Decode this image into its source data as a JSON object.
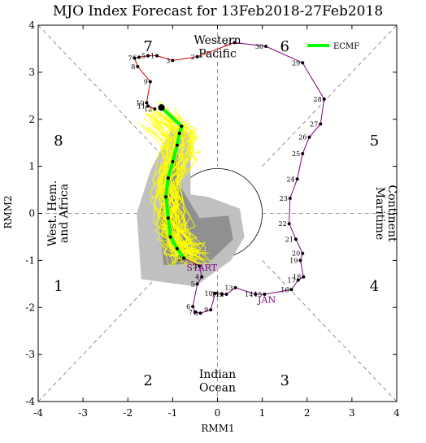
{
  "chart_data": {
    "type": "line",
    "title": "MJO Index Forecast for 13Feb2018-27Feb2018",
    "xlabel": "RMM1",
    "ylabel": "RMM2",
    "xlim": [
      -4,
      4
    ],
    "ylim": [
      -4,
      4
    ],
    "xticks": [
      "-4",
      "-3",
      "-2",
      "-1",
      "0",
      "1",
      "2",
      "3",
      "4"
    ],
    "yticks": [
      "-4",
      "-3",
      "-2",
      "-1",
      "0",
      "1",
      "2",
      "3",
      "4"
    ],
    "phase_numbers": [
      {
        "label": "1",
        "x": -3.55,
        "y": -1.55
      },
      {
        "label": "2",
        "x": -1.55,
        "y": -3.55
      },
      {
        "label": "3",
        "x": 1.5,
        "y": -3.55
      },
      {
        "label": "4",
        "x": 3.5,
        "y": -1.55
      },
      {
        "label": "5",
        "x": 3.5,
        "y": 1.55
      },
      {
        "label": "6",
        "x": 1.5,
        "y": 3.55
      },
      {
        "label": "7",
        "x": -1.55,
        "y": 3.55
      },
      {
        "label": "8",
        "x": -3.55,
        "y": 1.55
      }
    ],
    "regions": {
      "top": [
        "Western",
        "Pacific"
      ],
      "bottom": [
        "Indian",
        "Ocean"
      ],
      "left": [
        "West. Hem.",
        "and Africa"
      ],
      "right": [
        "Maritime",
        "Continent"
      ]
    },
    "legend": {
      "label": "ECMF",
      "color": "#00ff00",
      "placement": "top-right"
    },
    "month_labels": [
      {
        "label": "JAN",
        "x": 1.1,
        "y": -1.9
      },
      {
        "label": "START",
        "x": -0.35,
        "y": -1.22
      }
    ],
    "colors": {
      "observed_line": "#800080",
      "dec_line": "#cc0000",
      "ensemble": "#ffff00",
      "ensemble_mean": "#00ff00",
      "spread_outer": "#c0c0c0",
      "spread_inner": "#909090",
      "points": "#000000"
    },
    "observed_december": [
      {
        "label": "5",
        "x": -1.55,
        "y": 3.35
      },
      {
        "label": "6",
        "x": -1.75,
        "y": 3.32
      },
      {
        "label": "7",
        "x": -1.85,
        "y": 3.3
      },
      {
        "label": "8",
        "x": -1.78,
        "y": 3.12
      },
      {
        "label": "9",
        "x": -1.5,
        "y": 2.8
      },
      {
        "label": "10",
        "x": -1.58,
        "y": 2.35
      },
      {
        "label": "11",
        "x": -1.55,
        "y": 2.28
      },
      {
        "label": "12",
        "x": -1.4,
        "y": 2.22
      },
      {
        "label": "1",
        "x": -1.35,
        "y": 3.35
      },
      {
        "label": "3",
        "x": -1.0,
        "y": 3.25
      },
      {
        "label": "2",
        "x": -0.45,
        "y": 3.33
      },
      {
        "label": "21",
        "x": 0.38,
        "y": 3.63
      }
    ],
    "observed_jan_feb": [
      {
        "label": "30",
        "x": 1.08,
        "y": 3.55
      },
      {
        "label": "29",
        "x": 1.9,
        "y": 3.2
      },
      {
        "label": "28",
        "x": 2.38,
        "y": 2.43
      },
      {
        "label": "27",
        "x": 2.3,
        "y": 1.9
      },
      {
        "label": "26",
        "x": 2.05,
        "y": 1.62
      },
      {
        "label": "25",
        "x": 1.9,
        "y": 1.27
      },
      {
        "label": "24",
        "x": 1.78,
        "y": 0.73
      },
      {
        "label": "23",
        "x": 1.62,
        "y": 0.32
      },
      {
        "label": "22",
        "x": 1.6,
        "y": -0.22
      },
      {
        "label": "21",
        "x": 1.75,
        "y": -0.55
      },
      {
        "label": "20",
        "x": 1.9,
        "y": -0.85
      },
      {
        "label": "19",
        "x": 1.85,
        "y": -1.0
      },
      {
        "label": "18",
        "x": 1.92,
        "y": -1.35
      },
      {
        "label": "17",
        "x": 1.8,
        "y": -1.42
      },
      {
        "label": "16",
        "x": 1.65,
        "y": -1.62
      },
      {
        "label": "15",
        "x": 1.05,
        "y": -1.72
      },
      {
        "label": "14",
        "x": 0.85,
        "y": -1.72
      },
      {
        "label": "13",
        "x": 0.4,
        "y": -1.58
      },
      {
        "label": "12",
        "x": 0.2,
        "y": -1.72
      },
      {
        "label": "11",
        "x": 0.1,
        "y": -1.72
      },
      {
        "label": "10",
        "x": -0.05,
        "y": -1.7
      },
      {
        "label": "9",
        "x": -0.15,
        "y": -2.05
      },
      {
        "label": "8",
        "x": -0.38,
        "y": -2.12
      },
      {
        "label": "7",
        "x": -0.5,
        "y": -2.1
      },
      {
        "label": "6",
        "x": -0.55,
        "y": -1.98
      },
      {
        "label": "5",
        "x": -0.45,
        "y": -1.5
      },
      {
        "label": "4",
        "x": -0.35,
        "y": -1.35
      },
      {
        "label": "3",
        "x": -0.4,
        "y": -1.12
      },
      {
        "label": "2",
        "x": -0.75,
        "y": -0.95
      }
    ],
    "ensemble_mean": [
      {
        "x": -0.75,
        "y": -0.95
      },
      {
        "x": -0.9,
        "y": -0.75
      },
      {
        "x": -1.05,
        "y": -0.5
      },
      {
        "x": -1.1,
        "y": -0.1
      },
      {
        "x": -1.15,
        "y": 0.35
      },
      {
        "x": -1.1,
        "y": 0.75
      },
      {
        "x": -1.0,
        "y": 1.1
      },
      {
        "x": -0.9,
        "y": 1.45
      },
      {
        "x": -0.85,
        "y": 1.7
      },
      {
        "x": -0.8,
        "y": 1.85
      },
      {
        "x": -1.25,
        "y": 2.25
      }
    ]
  }
}
